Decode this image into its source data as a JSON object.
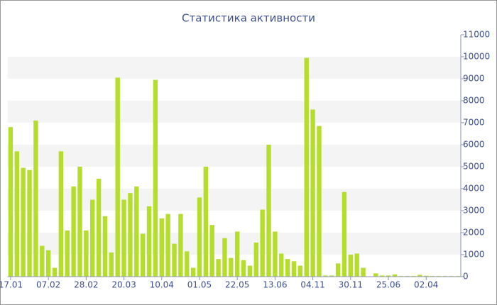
{
  "chart_data": {
    "type": "bar",
    "title": "Статистика активности",
    "categories": [
      "17.01",
      null,
      null,
      null,
      null,
      null,
      "07.02",
      null,
      null,
      null,
      null,
      null,
      "28.02",
      null,
      null,
      null,
      null,
      null,
      "20.03",
      null,
      null,
      null,
      null,
      null,
      "10.04",
      null,
      null,
      null,
      null,
      null,
      "01.05",
      null,
      null,
      null,
      null,
      null,
      "22.05",
      null,
      null,
      null,
      null,
      null,
      "13.06",
      null,
      null,
      null,
      null,
      null,
      "04.11",
      null,
      null,
      null,
      null,
      null,
      "30.11",
      null,
      null,
      null,
      null,
      null,
      "25.06",
      null,
      null,
      null,
      null,
      null,
      "02.04",
      null,
      null,
      null,
      null,
      null
    ],
    "values": [
      6800,
      5700,
      4950,
      4850,
      7100,
      1400,
      1200,
      400,
      5700,
      2100,
      4100,
      5000,
      2100,
      3500,
      4450,
      2750,
      1100,
      9050,
      3500,
      3800,
      4100,
      1950,
      3200,
      8950,
      2650,
      2850,
      1500,
      2850,
      1150,
      400,
      3600,
      5000,
      2350,
      800,
      1750,
      850,
      2050,
      750,
      500,
      1550,
      3050,
      6000,
      2050,
      1050,
      800,
      700,
      500,
      9950,
      7600,
      6850,
      50,
      50,
      600,
      3850,
      1000,
      1050,
      400,
      0,
      150,
      50,
      50,
      100,
      30,
      30,
      30,
      80,
      40,
      30,
      30,
      30,
      30,
      30
    ],
    "color": "#b5dd2b",
    "ylim": [
      0,
      11000
    ],
    "yticks": [
      0,
      1000,
      2000,
      3000,
      4000,
      5000,
      6000,
      7000,
      8000,
      9000,
      10000,
      11000
    ],
    "y_axis_side": "right",
    "grid": "banded"
  }
}
